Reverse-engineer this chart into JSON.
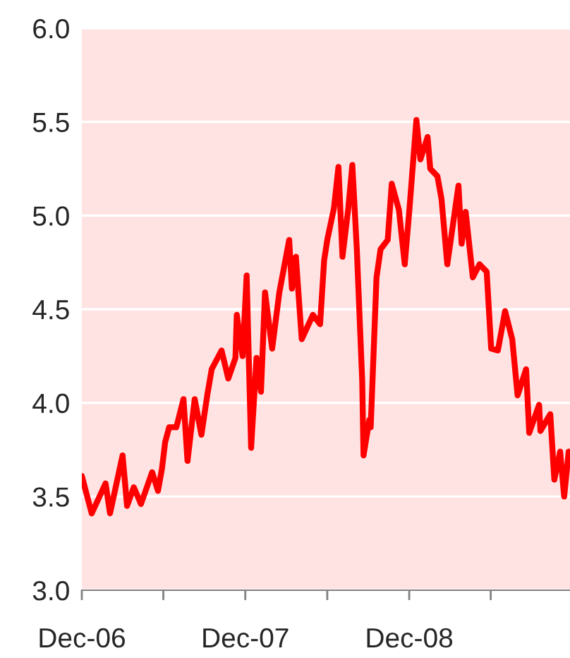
{
  "chart_data": {
    "type": "line",
    "x": [
      "2006-12-01",
      "2006-12-23",
      "2007-01-23",
      "2007-02-02",
      "2007-03-02",
      "2007-03-12",
      "2007-03-27",
      "2007-04-12",
      "2007-05-07",
      "2007-05-20",
      "2007-05-29",
      "2007-06-05",
      "2007-06-14",
      "2007-06-30",
      "2007-07-16",
      "2007-07-25",
      "2007-08-10",
      "2007-08-25",
      "2007-09-07",
      "2007-09-17",
      "2007-10-09",
      "2007-10-24",
      "2007-11-09",
      "2007-11-12",
      "2007-11-25",
      "2007-12-04",
      "2007-12-14",
      "2007-12-26",
      "2008-01-05",
      "2008-01-14",
      "2008-01-30",
      "2008-02-15",
      "2008-03-08",
      "2008-03-14",
      "2008-03-23",
      "2008-04-05",
      "2008-04-30",
      "2008-05-16",
      "2008-05-25",
      "2008-06-01",
      "2008-06-16",
      "2008-06-26",
      "2008-07-05",
      "2008-07-18",
      "2008-07-27",
      "2008-08-06",
      "2008-08-18",
      "2008-08-21",
      "2008-09-03",
      "2008-09-06",
      "2008-09-19",
      "2008-09-28",
      "2008-10-14",
      "2008-10-23",
      "2008-11-08",
      "2008-11-21",
      "2008-12-01",
      "2008-12-17",
      "2008-12-26",
      "2009-01-11",
      "2009-01-17",
      "2009-02-02",
      "2009-02-11",
      "2009-02-24",
      "2009-03-05",
      "2009-03-21",
      "2009-03-28",
      "2009-04-06",
      "2009-04-22",
      "2009-05-07",
      "2009-05-23",
      "2009-06-02",
      "2009-06-17",
      "2009-07-03",
      "2009-07-19",
      "2009-07-31",
      "2009-08-19",
      "2009-08-26",
      "2009-09-17",
      "2009-09-20",
      "2009-10-12",
      "2009-10-21",
      "2009-11-03",
      "2009-11-12",
      "2009-11-22"
    ],
    "series": [
      {
        "color": "#ff0000",
        "values": [
          3.61,
          3.41,
          3.57,
          3.41,
          3.72,
          3.45,
          3.55,
          3.46,
          3.63,
          3.53,
          3.65,
          3.79,
          3.87,
          3.87,
          4.02,
          3.69,
          4.02,
          3.83,
          4.04,
          4.18,
          4.28,
          4.13,
          4.24,
          4.47,
          4.25,
          4.68,
          3.76,
          4.24,
          4.06,
          4.59,
          4.29,
          4.59,
          4.87,
          4.61,
          4.78,
          4.34,
          4.47,
          4.42,
          4.76,
          4.87,
          5.04,
          5.26,
          4.78,
          5.04,
          5.27,
          4.82,
          4.12,
          3.72,
          3.91,
          3.87,
          4.67,
          4.82,
          4.87,
          5.17,
          5.03,
          4.74,
          5.02,
          5.51,
          5.3,
          5.42,
          5.25,
          5.21,
          5.09,
          4.74,
          4.89,
          5.16,
          4.85,
          5.02,
          4.67,
          4.74,
          4.7,
          4.29,
          4.28,
          4.49,
          4.34,
          4.04,
          4.18,
          3.84,
          3.99,
          3.85,
          3.94,
          3.59,
          3.74,
          3.5,
          3.74
        ]
      }
    ],
    "xlim": [
      "2006-12-01",
      "2009-11-25"
    ],
    "xticks": [
      {
        "value": "2006-12-01",
        "label": "Dec-06"
      },
      {
        "value": "2007-06-01",
        "label": null
      },
      {
        "value": "2007-12-01",
        "label": "Dec-07"
      },
      {
        "value": "2008-06-01",
        "label": null
      },
      {
        "value": "2008-12-01",
        "label": "Dec-08"
      },
      {
        "value": "2009-06-01",
        "label": null
      }
    ],
    "ylim": [
      3.0,
      6.0
    ],
    "yticks": [
      {
        "value": 3.0,
        "label": "3.0"
      },
      {
        "value": 3.5,
        "label": "3.5"
      },
      {
        "value": 4.0,
        "label": "4.0"
      },
      {
        "value": 4.5,
        "label": "4.5"
      },
      {
        "value": 5.0,
        "label": "5.0"
      },
      {
        "value": 5.5,
        "label": "5.5"
      },
      {
        "value": 6.0,
        "label": "6.0"
      }
    ],
    "grid": "y",
    "marker": "none",
    "line_style": "solid"
  }
}
